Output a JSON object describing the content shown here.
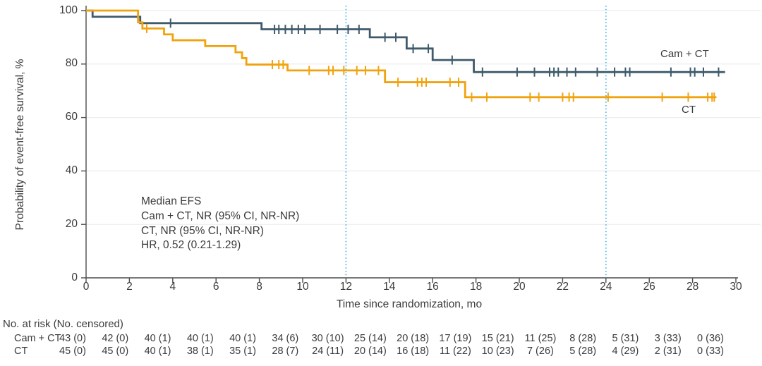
{
  "colors": {
    "cam_ct": "#3E5A6B",
    "ct": "#F1A30E",
    "reference_line": "#45B5E8",
    "gridline": "#ECECEC",
    "axis": "#4D4D4D",
    "text": "#3B3B3B"
  },
  "chart_data": {
    "type": "line",
    "subtype": "kaplan-meier-step",
    "title": "",
    "xlabel": "Time since randomization, mo",
    "ylabel": "Probability of event-free survival, %",
    "xlim": [
      0,
      30
    ],
    "ylim": [
      0,
      100
    ],
    "x_ticks": [
      0,
      2,
      4,
      6,
      8,
      10,
      12,
      14,
      16,
      18,
      20,
      22,
      24,
      26,
      28,
      30
    ],
    "y_ticks": [
      0,
      20,
      40,
      60,
      80,
      100
    ],
    "grid": "horizontal",
    "legend_position": "inline-right",
    "reference_lines_x": [
      12,
      24
    ],
    "annotations": [
      "Median EFS",
      "Cam + CT, NR (95% CI, NR-NR)",
      "CT, NR (95% CI, NR-NR)",
      "HR, 0.52 (0.21-1.29)"
    ],
    "series": [
      {
        "name": "Cam + CT",
        "color_key": "cam_ct",
        "steps": [
          [
            0,
            100
          ],
          [
            0.3,
            97.7
          ],
          [
            2.5,
            95.3
          ],
          [
            8.1,
            93
          ],
          [
            13.1,
            90
          ],
          [
            14.8,
            85.8
          ],
          [
            16,
            81.5
          ],
          [
            17.9,
            77
          ],
          [
            29.5,
            77
          ]
        ],
        "censors": [
          [
            3.9,
            95.3
          ],
          [
            8.7,
            93
          ],
          [
            8.9,
            93
          ],
          [
            9.2,
            93
          ],
          [
            9.5,
            93
          ],
          [
            9.8,
            93
          ],
          [
            10.1,
            93
          ],
          [
            10.8,
            93
          ],
          [
            11.6,
            93
          ],
          [
            12.1,
            93
          ],
          [
            12.6,
            93
          ],
          [
            13.8,
            90
          ],
          [
            14.3,
            90
          ],
          [
            15.1,
            85.8
          ],
          [
            15.8,
            85.8
          ],
          [
            16.9,
            81.5
          ],
          [
            18.3,
            77
          ],
          [
            19.9,
            77
          ],
          [
            20.7,
            77
          ],
          [
            21.4,
            77
          ],
          [
            21.6,
            77
          ],
          [
            21.8,
            77
          ],
          [
            22.2,
            77
          ],
          [
            22.6,
            77
          ],
          [
            23.6,
            77
          ],
          [
            24.4,
            77
          ],
          [
            24.9,
            77
          ],
          [
            25.1,
            77
          ],
          [
            27,
            77
          ],
          [
            27.9,
            77
          ],
          [
            28.1,
            77
          ],
          [
            28.5,
            77
          ],
          [
            29.2,
            77
          ]
        ]
      },
      {
        "name": "CT",
        "color_key": "ct",
        "steps": [
          [
            0,
            100
          ],
          [
            2.4,
            95.6
          ],
          [
            2.6,
            93.3
          ],
          [
            3.6,
            91.1
          ],
          [
            4,
            88.9
          ],
          [
            5.5,
            86.7
          ],
          [
            6.9,
            84.4
          ],
          [
            7.2,
            82.2
          ],
          [
            7.4,
            79.8
          ],
          [
            9.3,
            77.6
          ],
          [
            13.8,
            73.2
          ],
          [
            17.5,
            67.6
          ],
          [
            29.1,
            67.6
          ]
        ],
        "censors": [
          [
            2.8,
            93.3
          ],
          [
            8.6,
            79.8
          ],
          [
            8.9,
            79.8
          ],
          [
            9.1,
            79.8
          ],
          [
            10.3,
            77.6
          ],
          [
            11.2,
            77.6
          ],
          [
            11.4,
            77.6
          ],
          [
            11.9,
            77.6
          ],
          [
            12.5,
            77.6
          ],
          [
            12.9,
            77.6
          ],
          [
            13.5,
            77.6
          ],
          [
            14.4,
            73.2
          ],
          [
            15.3,
            73.2
          ],
          [
            15.5,
            73.2
          ],
          [
            15.7,
            73.2
          ],
          [
            16.8,
            73.2
          ],
          [
            17.2,
            73.2
          ],
          [
            17.8,
            67.6
          ],
          [
            18.5,
            67.6
          ],
          [
            20.5,
            67.6
          ],
          [
            20.9,
            67.6
          ],
          [
            22,
            67.6
          ],
          [
            22.3,
            67.6
          ],
          [
            22.5,
            67.6
          ],
          [
            24.1,
            67.6
          ],
          [
            26.6,
            67.6
          ],
          [
            27.8,
            67.6
          ],
          [
            28.7,
            67.6
          ],
          [
            28.9,
            67.6
          ],
          [
            29,
            67.6
          ]
        ]
      }
    ]
  },
  "risk_table": {
    "header": "No. at risk (No. censored)",
    "time_points": [
      0,
      2,
      4,
      6,
      8,
      10,
      12,
      14,
      16,
      18,
      20,
      22,
      24,
      26,
      28,
      30
    ],
    "rows": [
      {
        "label": "Cam + CT",
        "values": [
          "43 (0)",
          "42 (0)",
          "40 (1)",
          "40 (1)",
          "40 (1)",
          "34 (6)",
          "30 (10)",
          "25 (14)",
          "20 (18)",
          "17 (19)",
          "15 (21)",
          "11 (25)",
          "8 (28)",
          "5 (31)",
          "3 (33)",
          "0 (36)"
        ]
      },
      {
        "label": "CT",
        "values": [
          "45 (0)",
          "45 (0)",
          "40 (1)",
          "38 (1)",
          "35 (1)",
          "28 (7)",
          "24 (11)",
          "20 (14)",
          "16 (18)",
          "11 (22)",
          "10 (23)",
          "7 (26)",
          "5 (28)",
          "4 (29)",
          "2 (31)",
          "0 (33)"
        ]
      }
    ]
  }
}
